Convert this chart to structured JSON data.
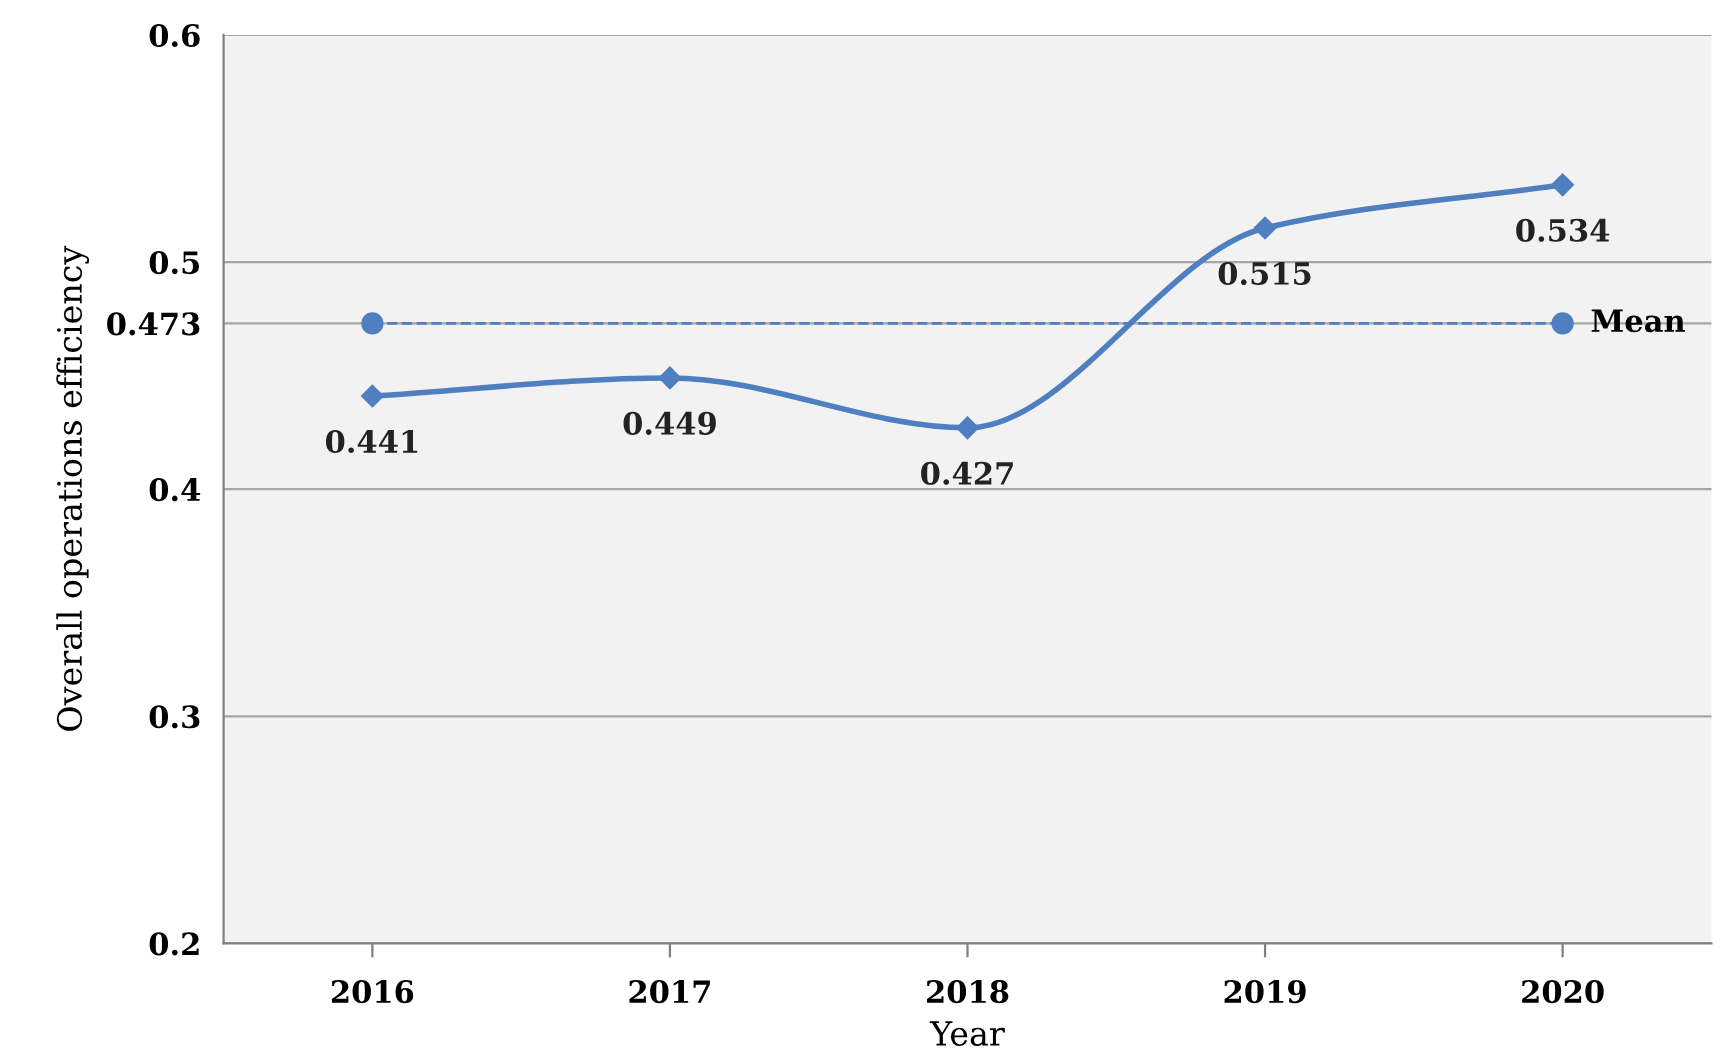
{
  "chart_data": {
    "type": "line",
    "xlabel": "Year",
    "ylabel": "Overall operations efficiency",
    "categories": [
      "2016",
      "2017",
      "2018",
      "2019",
      "2020"
    ],
    "series": [
      {
        "color": "#4f7fc0",
        "values": [
          0.441,
          0.449,
          0.427,
          0.515,
          0.534
        ]
      },
      {
        "name": "Mean",
        "color": "#4f7fc0",
        "line_style": "dashed",
        "marker": "circle",
        "values": [
          0.473,
          null,
          null,
          null,
          0.473
        ],
        "value_labels": [
          null,
          null,
          null,
          null,
          null
        ]
      }
    ],
    "marker": "diamond",
    "data_labels": true,
    "ylim": [
      0.2,
      0.6
    ],
    "yticks": [
      0.2,
      0.3,
      0.4,
      0.473,
      0.5,
      0.6
    ],
    "grid": "y"
  }
}
